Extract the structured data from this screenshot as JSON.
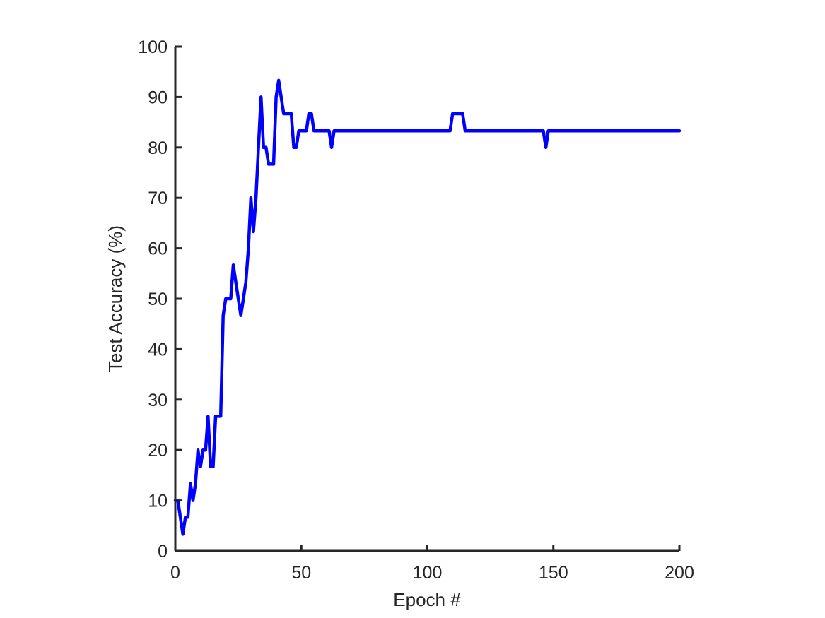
{
  "chart_data": {
    "type": "line",
    "title": "",
    "xlabel": "Epoch #",
    "ylabel": "Test Accuracy (%)",
    "xlim": [
      0,
      200
    ],
    "ylim": [
      0,
      100
    ],
    "x_ticks": [
      0,
      50,
      100,
      150,
      200
    ],
    "y_ticks": [
      0,
      10,
      20,
      30,
      40,
      50,
      60,
      70,
      80,
      90,
      100
    ],
    "grid": false,
    "line_color": "#0000ff",
    "axis_color": "#262626",
    "series": [
      {
        "name": "Test Accuracy",
        "x": [
          0,
          1,
          2,
          3,
          4,
          5,
          6,
          7,
          8,
          9,
          10,
          11,
          12,
          13,
          14,
          15,
          16,
          17,
          18,
          19,
          20,
          21,
          22,
          23,
          24,
          25,
          26,
          27,
          28,
          29,
          30,
          31,
          32,
          33,
          34,
          35,
          36,
          37,
          38,
          39,
          40,
          41,
          42,
          43,
          44,
          45,
          46,
          47,
          48,
          49,
          50,
          51,
          52,
          53,
          54,
          55,
          60,
          61,
          62,
          63,
          80,
          100,
          109,
          110,
          111,
          112,
          113,
          114,
          115,
          120,
          140,
          145,
          146,
          147,
          148,
          149,
          160,
          180,
          200
        ],
        "values": [
          10,
          10,
          6.7,
          3.3,
          6.7,
          6.7,
          13.3,
          10,
          13.3,
          20,
          16.7,
          20,
          20,
          26.7,
          16.7,
          16.7,
          26.7,
          26.7,
          26.7,
          46.7,
          50,
          50,
          50,
          56.7,
          53.3,
          50,
          46.7,
          50,
          53.3,
          60,
          70,
          63.3,
          70,
          80,
          90,
          80,
          80,
          76.7,
          76.7,
          76.7,
          90,
          93.3,
          90,
          86.7,
          86.7,
          86.7,
          86.7,
          80,
          80,
          83.3,
          83.3,
          83.3,
          83.3,
          86.7,
          86.7,
          83.3,
          83.3,
          83.3,
          80,
          83.3,
          83.3,
          83.3,
          83.3,
          86.7,
          86.7,
          86.7,
          86.7,
          86.7,
          83.3,
          83.3,
          83.3,
          83.3,
          83.3,
          80,
          83.3,
          83.3,
          83.3,
          83.3,
          83.3
        ]
      }
    ]
  }
}
